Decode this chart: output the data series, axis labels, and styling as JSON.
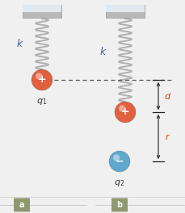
{
  "bg_color": "#f0f0f0",
  "ceiling_color_dark": "#b8b8b8",
  "ceiling_color_light": "#e0e8f0",
  "spring_color": "#b0b0b0",
  "dashed_line_color": "#555555",
  "arrow_color": "#222222",
  "pos_sphere_color": "#e06040",
  "neg_sphere_color": "#60a8cc",
  "label_k_color": "#4060a0",
  "label_q_color": "#333333",
  "panel_label_color": "#ffffff",
  "panel_bg_color": "#909870",
  "fig_width": 2.29,
  "fig_height": 2.64,
  "dpi": 100,
  "panel_a_label": "a",
  "panel_b_label": "b",
  "k_label": "k",
  "q1_label": "q_1",
  "q2_label": "q_2",
  "d_label": "d",
  "r_label": "r",
  "d_color": "#cc4400",
  "r_color": "#cc4400"
}
